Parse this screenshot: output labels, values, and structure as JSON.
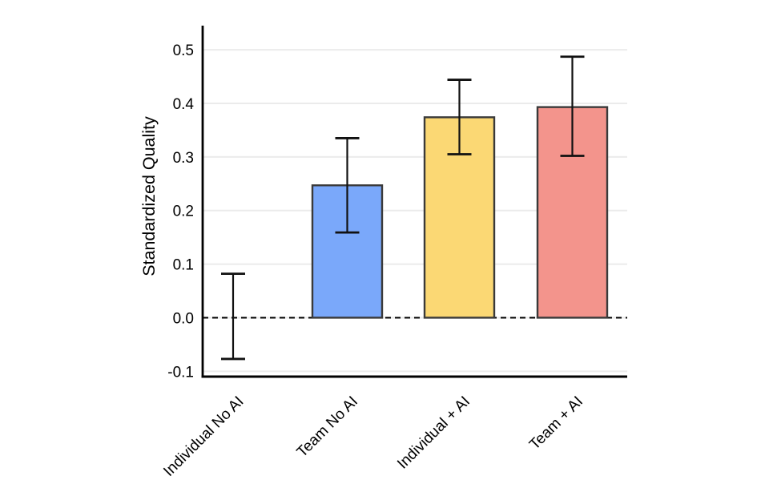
{
  "chart_data": {
    "type": "bar",
    "title": "",
    "xlabel": "",
    "ylabel": "Standardized Quality",
    "categories": [
      "Individual No AI",
      "Team No AI",
      "Individual + AI",
      "Team + AI"
    ],
    "values": [
      0.0,
      0.247,
      0.374,
      0.393
    ],
    "error_low": [
      -0.077,
      0.159,
      0.305,
      0.302
    ],
    "error_high": [
      0.082,
      0.335,
      0.444,
      0.487
    ],
    "bar_colors": [
      "none",
      "#7AA8FA",
      "#FBD874",
      "#F3948C"
    ],
    "bar_edge_color": "#3A3A3A",
    "y_ticks": [
      -0.1,
      0.0,
      0.1,
      0.2,
      0.3,
      0.4,
      0.5
    ],
    "y_tick_labels": [
      "-0.1",
      "0.0",
      "0.1",
      "0.2",
      "0.3",
      "0.4",
      "0.5"
    ],
    "ylim": [
      -0.11,
      0.545
    ],
    "grid": "horizontal",
    "zero_line": "dashed",
    "legend": "none"
  },
  "colors": {
    "background": "#ffffff",
    "grid": "#ebebeb",
    "axis": "#000000",
    "errorbar": "#111111",
    "zero_line": "#000000"
  }
}
